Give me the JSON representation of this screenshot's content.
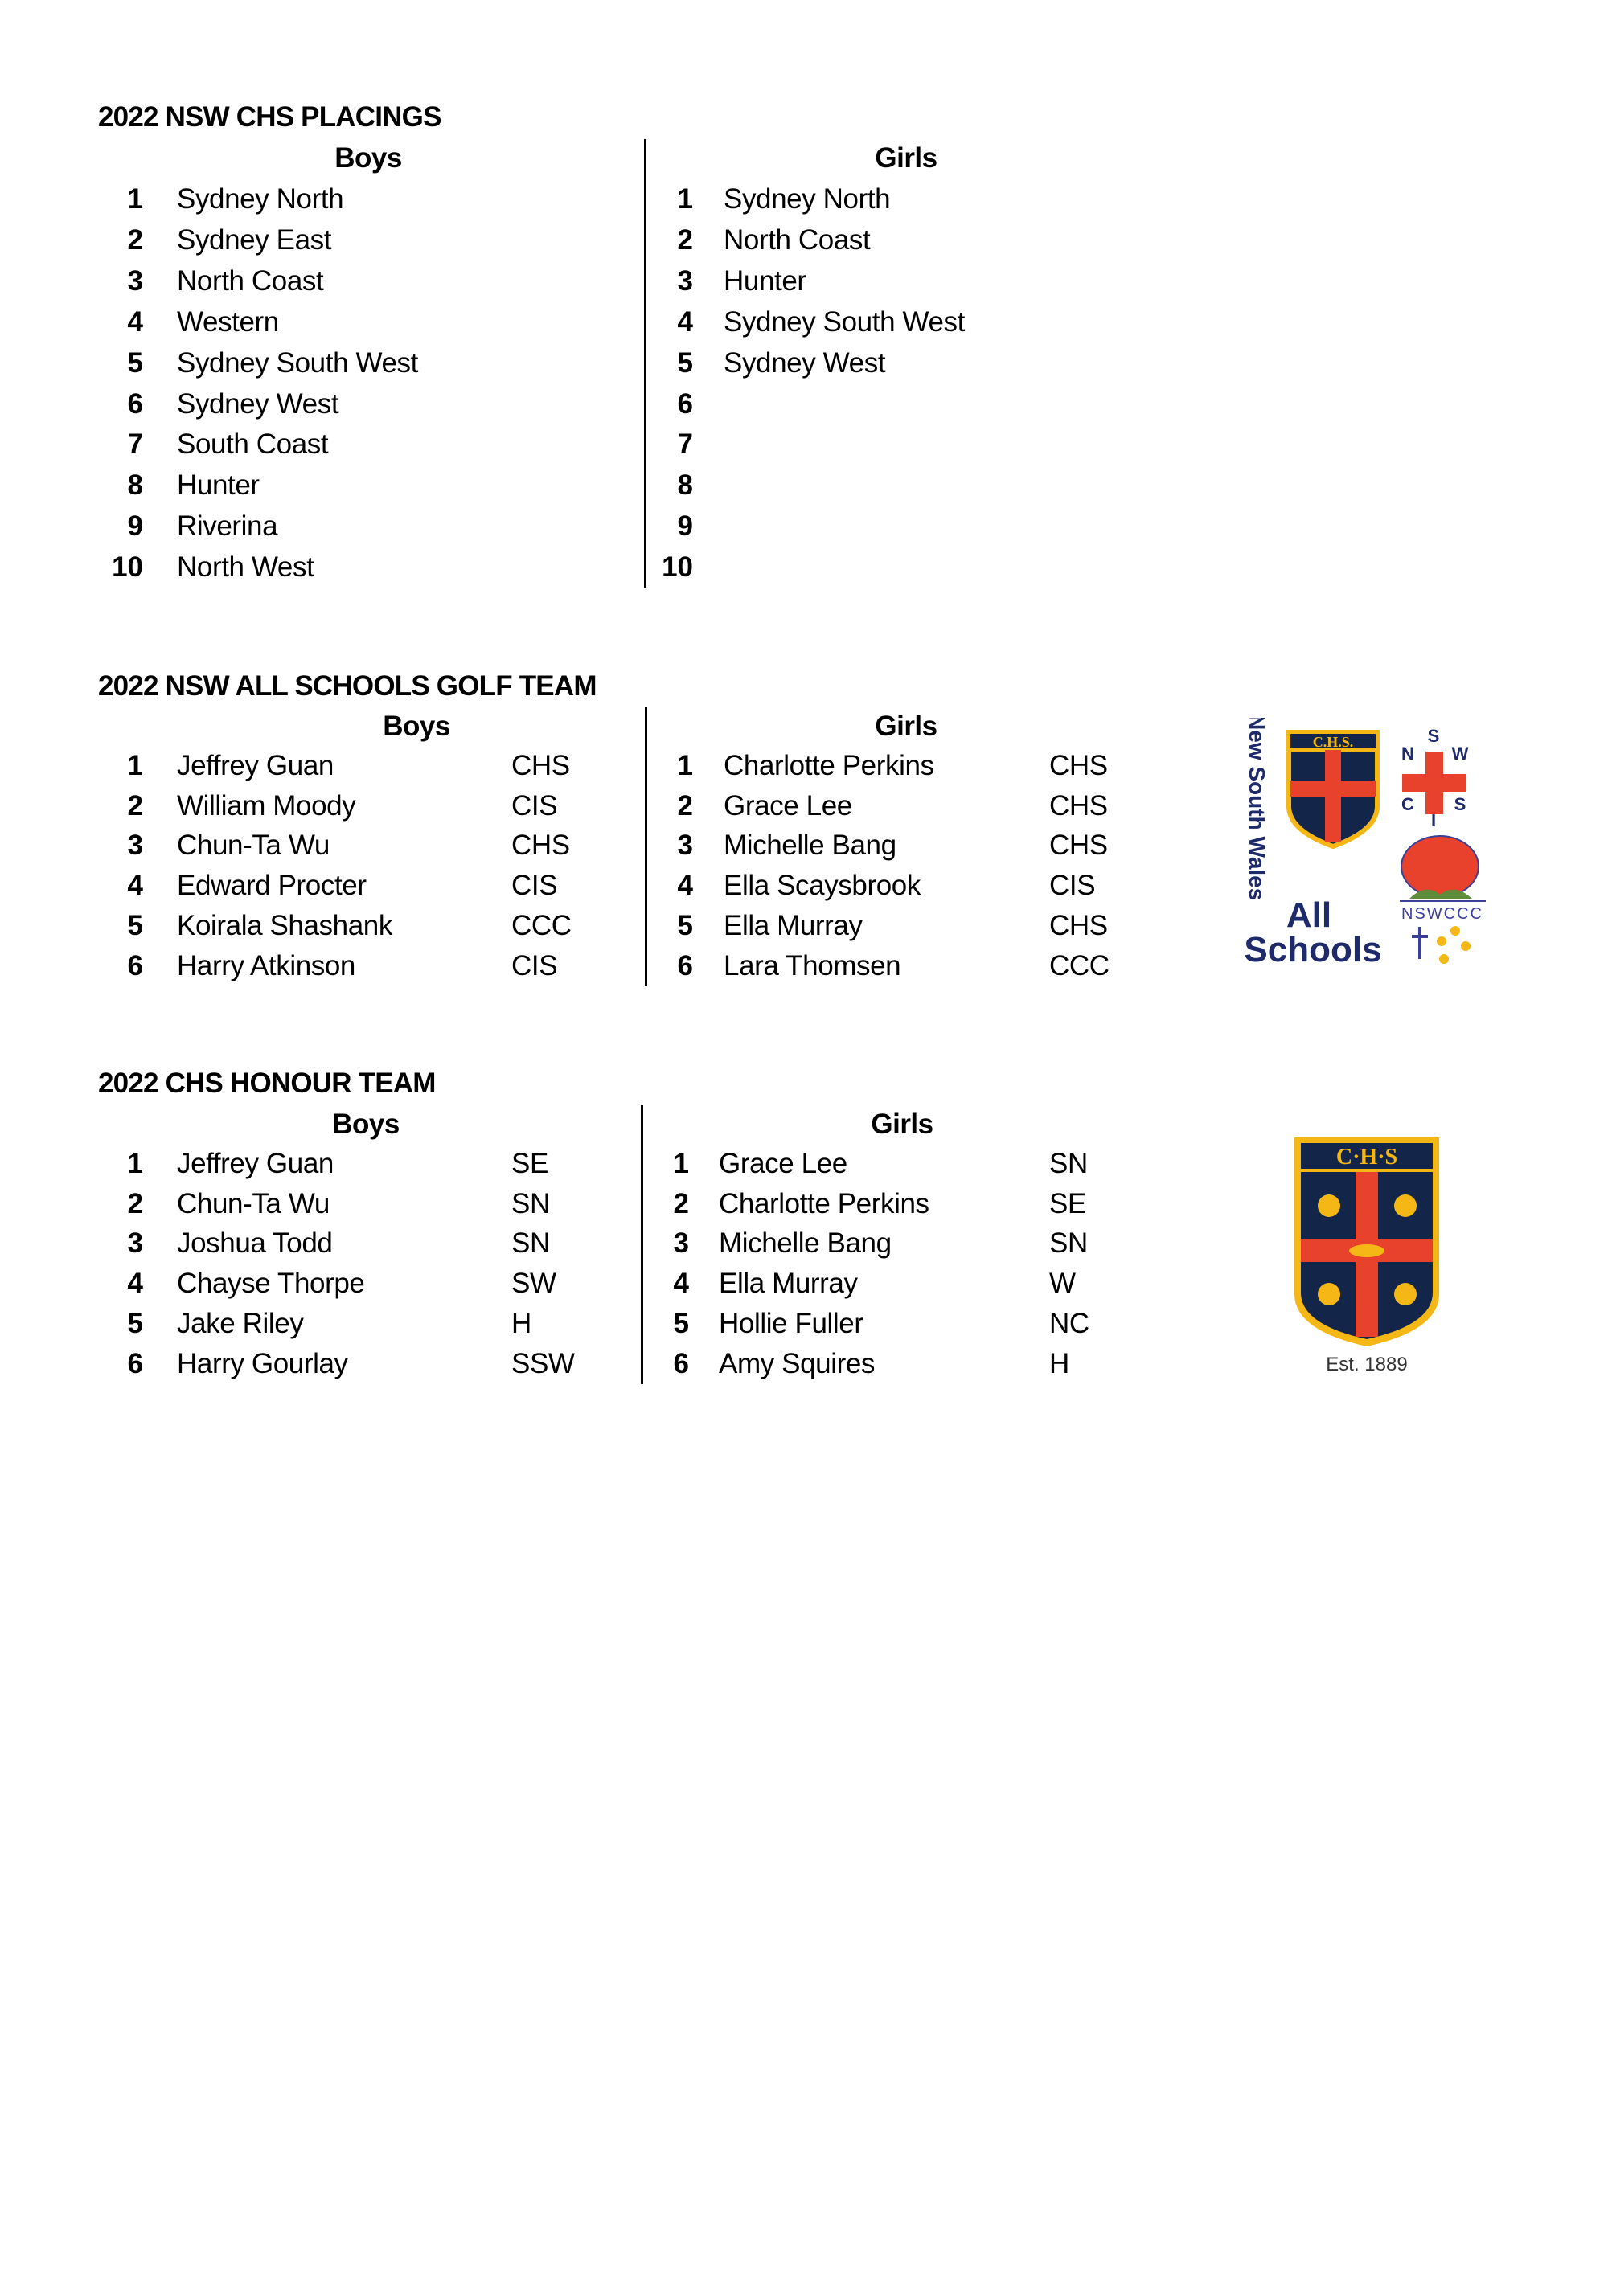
{
  "placings": {
    "title": "2022 NSW CHS PLACINGS",
    "boys_header": "Boys",
    "girls_header": "Girls",
    "boys": [
      {
        "rank": "1",
        "name": "Sydney North"
      },
      {
        "rank": "2",
        "name": "Sydney East"
      },
      {
        "rank": "3",
        "name": "North Coast"
      },
      {
        "rank": "4",
        "name": "Western"
      },
      {
        "rank": "5",
        "name": "Sydney South West"
      },
      {
        "rank": "6",
        "name": "Sydney West"
      },
      {
        "rank": "7",
        "name": "South Coast"
      },
      {
        "rank": "8",
        "name": "Hunter"
      },
      {
        "rank": "9",
        "name": "Riverina"
      },
      {
        "rank": "10",
        "name": "North West"
      }
    ],
    "girls": [
      {
        "rank": "1",
        "name": "Sydney North"
      },
      {
        "rank": "2",
        "name": "North Coast"
      },
      {
        "rank": "3",
        "name": "Hunter"
      },
      {
        "rank": "4",
        "name": "Sydney South West"
      },
      {
        "rank": "5",
        "name": "Sydney West"
      },
      {
        "rank": "6",
        "name": ""
      },
      {
        "rank": "7",
        "name": ""
      },
      {
        "rank": "8",
        "name": ""
      },
      {
        "rank": "9",
        "name": ""
      },
      {
        "rank": "10",
        "name": ""
      }
    ]
  },
  "all_schools": {
    "title": "2022 NSW ALL SCHOOLS GOLF TEAM",
    "boys_header": "Boys",
    "girls_header": "Girls",
    "boys": [
      {
        "rank": "1",
        "name": "Jeffrey Guan",
        "code": "CHS"
      },
      {
        "rank": "2",
        "name": "William Moody",
        "code": "CIS"
      },
      {
        "rank": "3",
        "name": "Chun-Ta Wu",
        "code": "CHS"
      },
      {
        "rank": "4",
        "name": "Edward Procter",
        "code": "CIS"
      },
      {
        "rank": "5",
        "name": "Koirala Shashank",
        "code": "CCC"
      },
      {
        "rank": "6",
        "name": "Harry Atkinson",
        "code": "CIS"
      }
    ],
    "girls": [
      {
        "rank": "1",
        "name": "Charlotte Perkins",
        "code": "CHS"
      },
      {
        "rank": "2",
        "name": "Grace Lee",
        "code": "CHS"
      },
      {
        "rank": "3",
        "name": "Michelle Bang",
        "code": "CHS"
      },
      {
        "rank": "4",
        "name": "Ella Scaysbrook",
        "code": "CIS"
      },
      {
        "rank": "5",
        "name": "Ella Murray",
        "code": "CHS"
      },
      {
        "rank": "6",
        "name": "Lara Thomsen",
        "code": "CCC"
      }
    ],
    "logo": {
      "side_text": "New South Wales",
      "line1": "All",
      "line2": "Schools",
      "chs_text": "C.H.S.",
      "cis_letters": [
        "N",
        "S",
        "W",
        "C",
        "I",
        "S"
      ],
      "ccc_text": "NSWCCC"
    }
  },
  "honour": {
    "title": "2022 CHS HONOUR TEAM",
    "boys_header": "Boys",
    "girls_header": "Girls",
    "boys": [
      {
        "rank": "1",
        "name": "Jeffrey Guan",
        "code": "SE"
      },
      {
        "rank": "2",
        "name": "Chun-Ta Wu",
        "code": "SN"
      },
      {
        "rank": "3",
        "name": "Joshua Todd",
        "code": "SN"
      },
      {
        "rank": "4",
        "name": "Chayse Thorpe",
        "code": "SW"
      },
      {
        "rank": "5",
        "name": "Jake Riley",
        "code": "H"
      },
      {
        "rank": "6",
        "name": "Harry Gourlay",
        "code": "SSW"
      }
    ],
    "girls": [
      {
        "rank": "1",
        "name": "Grace Lee",
        "code": "SN"
      },
      {
        "rank": "2",
        "name": "Charlotte Perkins",
        "code": "SE"
      },
      {
        "rank": "3",
        "name": "Michelle Bang",
        "code": "SN"
      },
      {
        "rank": "4",
        "name": "Ella Murray",
        "code": "W"
      },
      {
        "rank": "5",
        "name": "Hollie Fuller",
        "code": "NC"
      },
      {
        "rank": "6",
        "name": "Amy Squires",
        "code": "H"
      }
    ],
    "logo": {
      "crest_text": "C·H·S",
      "est": "Est. 1889"
    }
  },
  "colors": {
    "navy": "#13264a",
    "gold": "#f5b715",
    "red": "#e8412c",
    "logo_text": "#1f2a6b"
  }
}
